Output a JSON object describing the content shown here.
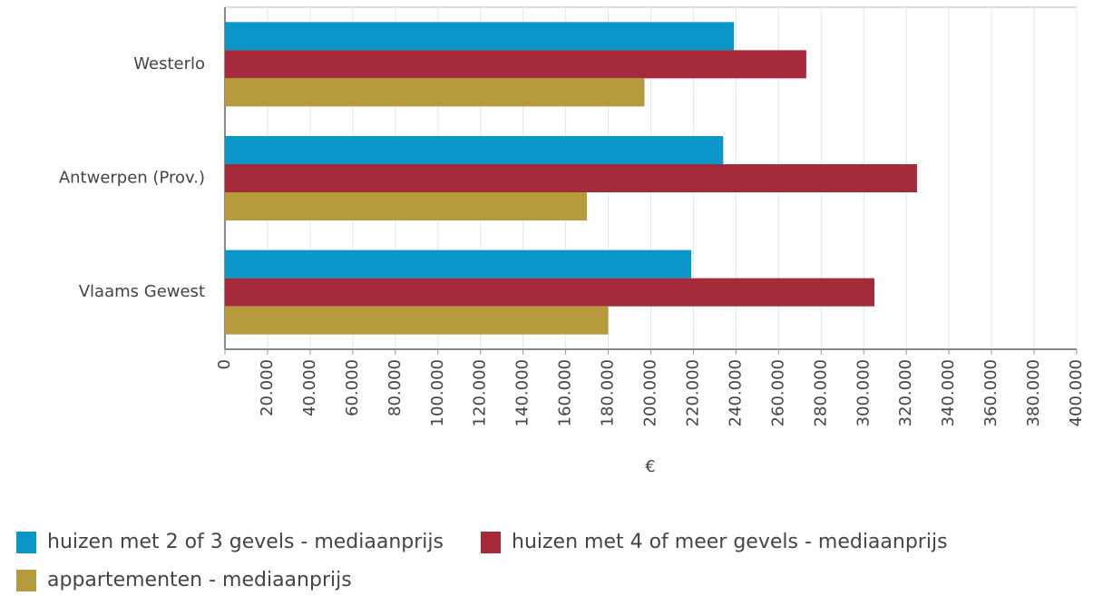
{
  "chart_data": {
    "type": "barh",
    "categories": [
      "Westerlo",
      "Antwerpen (Prov.)",
      "Vlaams Gewest"
    ],
    "series": [
      {
        "name": "huizen met 2 of 3 gevels - mediaanprijs",
        "color": "#0a96c8",
        "values": [
          239000,
          234000,
          219000
        ]
      },
      {
        "name": "huizen met 4 of meer gevels - mediaanprijs",
        "color": "#a52a3a",
        "values": [
          273000,
          325000,
          305000
        ]
      },
      {
        "name": "appartementen - mediaanprijs",
        "color": "#b79a3c",
        "values": [
          197000,
          170000,
          180000
        ]
      }
    ],
    "xlabel": "€",
    "xlim": [
      0,
      400000
    ],
    "xticks": [
      0,
      {
        "value": 20000,
        "label": "20.000"
      },
      {
        "value": 40000,
        "label": "40.000"
      },
      {
        "value": 60000,
        "label": "60.000"
      },
      {
        "value": 80000,
        "label": "80.000"
      },
      {
        "value": 100000,
        "label": "100.000"
      },
      {
        "value": 120000,
        "label": "120.000"
      },
      {
        "value": 140000,
        "label": "140.000"
      },
      {
        "value": 160000,
        "label": "160.000"
      },
      {
        "value": 180000,
        "label": "180.000"
      },
      {
        "value": 200000,
        "label": "200.000"
      },
      {
        "value": 220000,
        "label": "220.000"
      },
      {
        "value": 240000,
        "label": "240.000"
      },
      {
        "value": 260000,
        "label": "260.000"
      },
      {
        "value": 280000,
        "label": "280.000"
      },
      {
        "value": 300000,
        "label": "300.000"
      },
      {
        "value": 320000,
        "label": "320.000"
      },
      {
        "value": 340000,
        "label": "340.000"
      },
      {
        "value": 360000,
        "label": "360.000"
      },
      {
        "value": 380000,
        "label": "380.000"
      },
      {
        "value": 400000,
        "label": "400.000"
      }
    ],
    "grid": true,
    "legend": "bottom-left"
  }
}
